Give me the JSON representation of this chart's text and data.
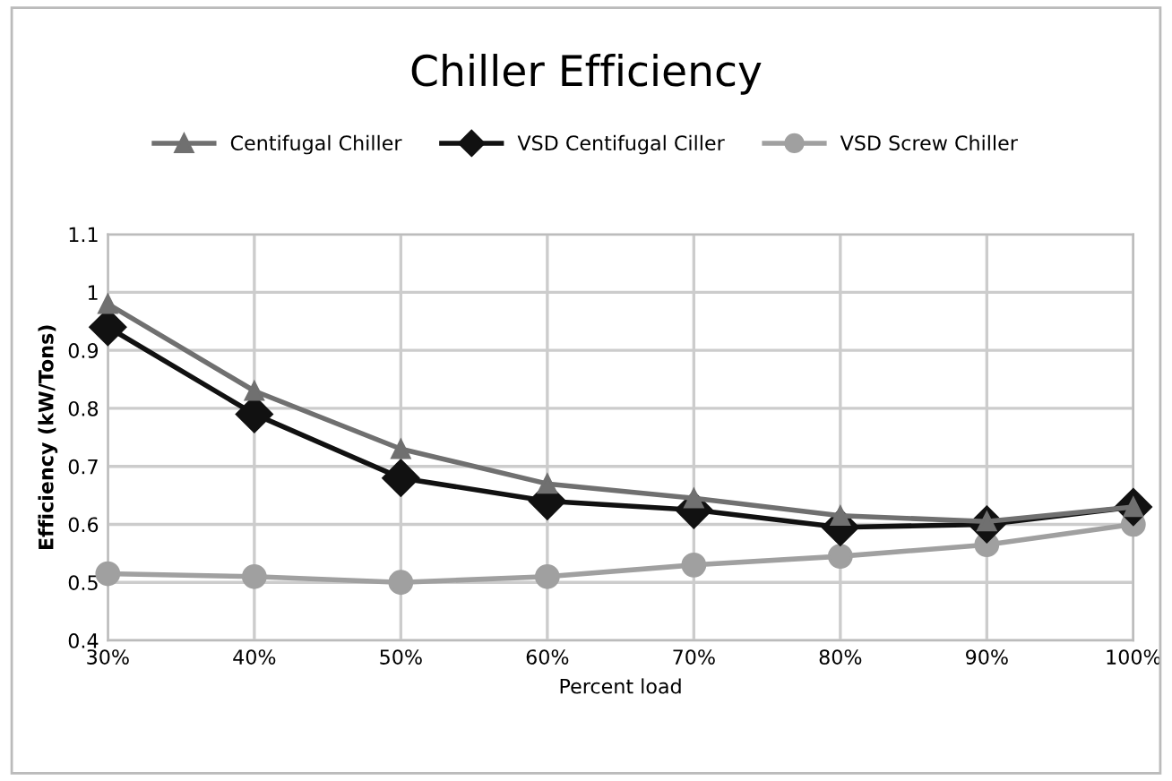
{
  "chart_data": {
    "type": "line",
    "title": "Chiller Efficiency",
    "xlabel": "Percent load",
    "ylabel": "Efficiency (kW/Tons)",
    "categories": [
      "30%",
      "40%",
      "50%",
      "60%",
      "70%",
      "80%",
      "90%",
      "100%"
    ],
    "series": [
      {
        "name": "Centifugal Chiller",
        "color": "#707070",
        "marker": "triangle",
        "values": [
          0.98,
          0.83,
          0.73,
          0.67,
          0.645,
          0.615,
          0.605,
          0.63
        ]
      },
      {
        "name": "VSD Centifugal Ciller",
        "color": "#111111",
        "marker": "diamond",
        "values": [
          0.94,
          0.79,
          0.68,
          0.64,
          0.625,
          0.595,
          0.6,
          0.63
        ]
      },
      {
        "name": "VSD Screw Chiller",
        "color": "#a0a0a0",
        "marker": "circle",
        "values": [
          0.515,
          0.51,
          0.5,
          0.51,
          0.53,
          0.545,
          0.565,
          0.6
        ]
      }
    ],
    "ylim": [
      0.4,
      1.1
    ],
    "yticks": [
      0.4,
      0.5,
      0.6,
      0.7,
      0.8,
      0.9,
      1,
      1.1
    ],
    "grid": true,
    "legend": "top",
    "line_style": "solid"
  }
}
